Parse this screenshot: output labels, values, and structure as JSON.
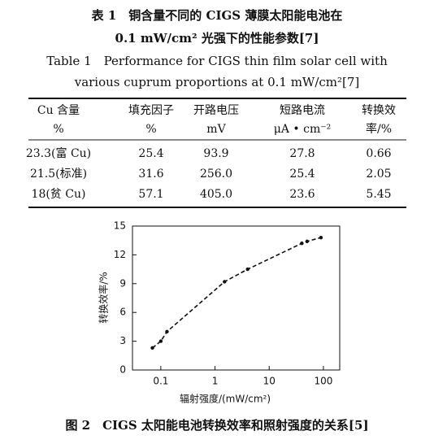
{
  "caption_cn": [
    "表 1　铜含量不同的 CIGS 薄膜太阳能电池在",
    "0.1 mW/cm² 光强下的性能参数[7]"
  ],
  "caption_en": [
    "Table 1　Performance for CIGS thin film solar cell with",
    "various cuprum proportions at 0.1 mW/cm²[7]"
  ],
  "table": {
    "header": [
      [
        "Cu 含量",
        "填充因子",
        "开路电压",
        "短路电流",
        "转换效"
      ],
      [
        "%",
        "%",
        "mV",
        "μA • cm⁻²",
        "率/%"
      ]
    ],
    "rows": [
      [
        "23.3(富 Cu)",
        "25.4",
        "93.9",
        "27.8",
        "0.66"
      ],
      [
        "21.5(标准)",
        "31.6",
        "256.0",
        "25.4",
        "2.05"
      ],
      [
        "18(贫 Cu)",
        "57.1",
        "405.0",
        "23.6",
        "5.45"
      ]
    ]
  },
  "chart_data": {
    "type": "scatter",
    "line_style": "dashed",
    "color": "#111111",
    "log_x": true,
    "xlabel": "辐射强度/(mW/cm²)",
    "ylabel": "转换效率/%",
    "x": [
      0.07,
      0.1,
      0.13,
      1.5,
      4,
      40,
      50,
      90
    ],
    "values": [
      2.3,
      3.0,
      4.0,
      9.2,
      10.5,
      13.2,
      13.4,
      13.8
    ],
    "xlim": [
      0.03,
      200
    ],
    "xticks": [
      0.1,
      1,
      10,
      100
    ],
    "ylim": [
      0,
      15
    ],
    "yticks": [
      0,
      3,
      6,
      9,
      12,
      15
    ]
  },
  "figure_caption": "图 2　CIGS 太阳能电池转换效率和照射强度的关系[5]"
}
